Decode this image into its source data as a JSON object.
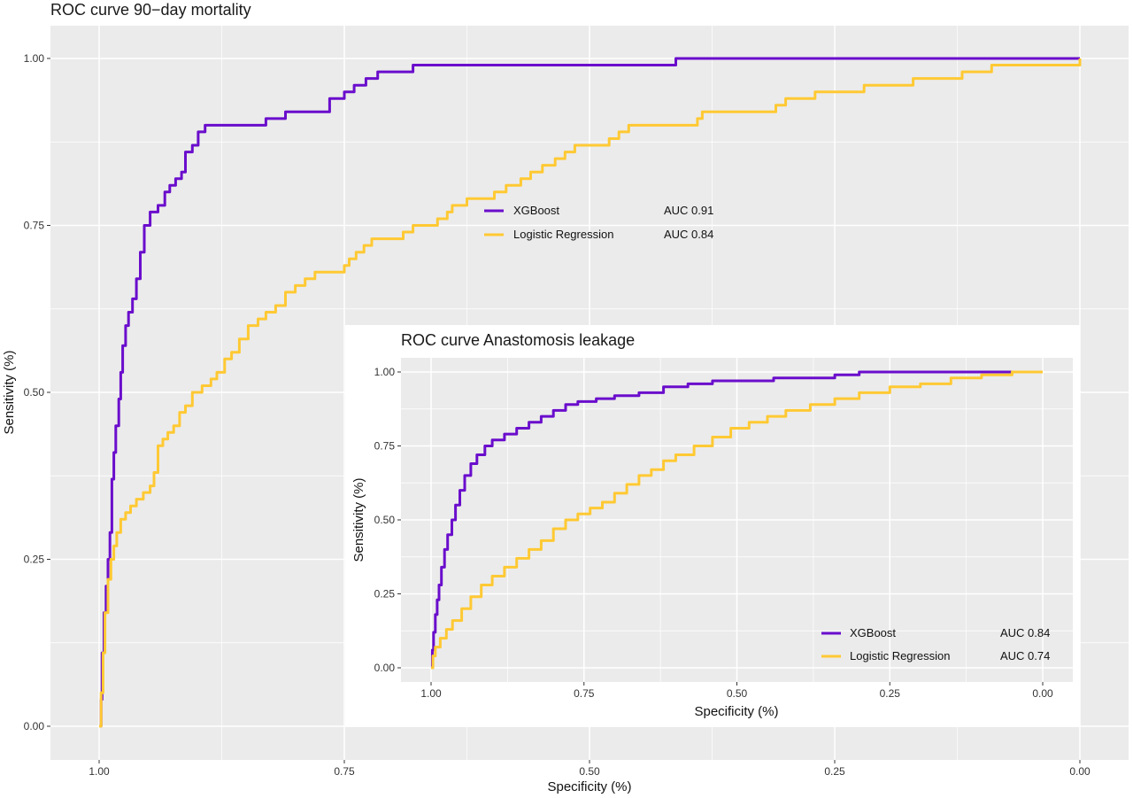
{
  "chart_data": [
    {
      "type": "line",
      "title": "ROC curve 90−day mortality",
      "xlabel": "Specificity (%)",
      "ylabel": "Sensitivity (%)",
      "xlim": [
        1.0,
        0.0
      ],
      "ylim": [
        0.0,
        1.0
      ],
      "x_reversed": true,
      "x_ticks": [
        "1.00",
        "0.75",
        "0.50",
        "0.25",
        "0.00"
      ],
      "y_ticks": [
        "0.00",
        "0.25",
        "0.50",
        "0.75",
        "1.00"
      ],
      "grid": true,
      "legend_position": "center",
      "series": [
        {
          "name": "XGBoost",
          "auc_label": "AUC 0.91",
          "color": "#6a0dcc",
          "points": [
            [
              1.0,
              0.0
            ],
            [
              0.998,
              0.04
            ],
            [
              0.997,
              0.11
            ],
            [
              0.995,
              0.17
            ],
            [
              0.993,
              0.21
            ],
            [
              0.991,
              0.25
            ],
            [
              0.989,
              0.29
            ],
            [
              0.987,
              0.37
            ],
            [
              0.985,
              0.41
            ],
            [
              0.983,
              0.45
            ],
            [
              0.98,
              0.49
            ],
            [
              0.978,
              0.53
            ],
            [
              0.976,
              0.57
            ],
            [
              0.973,
              0.6
            ],
            [
              0.97,
              0.62
            ],
            [
              0.966,
              0.64
            ],
            [
              0.962,
              0.67
            ],
            [
              0.958,
              0.71
            ],
            [
              0.954,
              0.75
            ],
            [
              0.948,
              0.77
            ],
            [
              0.94,
              0.78
            ],
            [
              0.933,
              0.8
            ],
            [
              0.928,
              0.81
            ],
            [
              0.922,
              0.82
            ],
            [
              0.916,
              0.83
            ],
            [
              0.912,
              0.86
            ],
            [
              0.905,
              0.87
            ],
            [
              0.899,
              0.89
            ],
            [
              0.892,
              0.9
            ],
            [
              0.87,
              0.9
            ],
            [
              0.845,
              0.9
            ],
            [
              0.83,
              0.91
            ],
            [
              0.81,
              0.92
            ],
            [
              0.78,
              0.92
            ],
            [
              0.765,
              0.94
            ],
            [
              0.75,
              0.95
            ],
            [
              0.74,
              0.96
            ],
            [
              0.728,
              0.97
            ],
            [
              0.716,
              0.98
            ],
            [
              0.7,
              0.98
            ],
            [
              0.68,
              0.99
            ],
            [
              0.6,
              0.99
            ],
            [
              0.5,
              0.99
            ],
            [
              0.415,
              0.99
            ],
            [
              0.412,
              1.0
            ],
            [
              0.3,
              1.0
            ],
            [
              0.2,
              1.0
            ],
            [
              0.12,
              1.0
            ],
            [
              0.0,
              1.0
            ]
          ]
        },
        {
          "name": "Logistic Regression",
          "auc_label": "AUC 0.84",
          "color": "#ffc933",
          "points": [
            [
              1.0,
              0.0
            ],
            [
              0.998,
              0.05
            ],
            [
              0.996,
              0.11
            ],
            [
              0.994,
              0.17
            ],
            [
              0.991,
              0.22
            ],
            [
              0.988,
              0.25
            ],
            [
              0.985,
              0.27
            ],
            [
              0.982,
              0.29
            ],
            [
              0.978,
              0.31
            ],
            [
              0.973,
              0.32
            ],
            [
              0.968,
              0.33
            ],
            [
              0.962,
              0.34
            ],
            [
              0.955,
              0.35
            ],
            [
              0.948,
              0.36
            ],
            [
              0.944,
              0.38
            ],
            [
              0.94,
              0.42
            ],
            [
              0.935,
              0.43
            ],
            [
              0.93,
              0.44
            ],
            [
              0.924,
              0.45
            ],
            [
              0.918,
              0.47
            ],
            [
              0.912,
              0.48
            ],
            [
              0.905,
              0.5
            ],
            [
              0.895,
              0.51
            ],
            [
              0.886,
              0.52
            ],
            [
              0.88,
              0.53
            ],
            [
              0.872,
              0.55
            ],
            [
              0.865,
              0.56
            ],
            [
              0.857,
              0.58
            ],
            [
              0.848,
              0.6
            ],
            [
              0.838,
              0.61
            ],
            [
              0.83,
              0.62
            ],
            [
              0.82,
              0.63
            ],
            [
              0.81,
              0.65
            ],
            [
              0.8,
              0.66
            ],
            [
              0.79,
              0.67
            ],
            [
              0.78,
              0.68
            ],
            [
              0.76,
              0.68
            ],
            [
              0.75,
              0.69
            ],
            [
              0.745,
              0.7
            ],
            [
              0.738,
              0.71
            ],
            [
              0.73,
              0.72
            ],
            [
              0.722,
              0.73
            ],
            [
              0.71,
              0.73
            ],
            [
              0.69,
              0.74
            ],
            [
              0.68,
              0.75
            ],
            [
              0.664,
              0.75
            ],
            [
              0.655,
              0.76
            ],
            [
              0.645,
              0.77
            ],
            [
              0.64,
              0.78
            ],
            [
              0.625,
              0.79
            ],
            [
              0.61,
              0.79
            ],
            [
              0.597,
              0.8
            ],
            [
              0.585,
              0.81
            ],
            [
              0.57,
              0.82
            ],
            [
              0.56,
              0.83
            ],
            [
              0.548,
              0.84
            ],
            [
              0.535,
              0.85
            ],
            [
              0.525,
              0.86
            ],
            [
              0.515,
              0.87
            ],
            [
              0.5,
              0.87
            ],
            [
              0.48,
              0.88
            ],
            [
              0.47,
              0.89
            ],
            [
              0.46,
              0.9
            ],
            [
              0.4,
              0.9
            ],
            [
              0.39,
              0.91
            ],
            [
              0.385,
              0.92
            ],
            [
              0.33,
              0.92
            ],
            [
              0.31,
              0.93
            ],
            [
              0.3,
              0.94
            ],
            [
              0.27,
              0.95
            ],
            [
              0.23,
              0.95
            ],
            [
              0.22,
              0.96
            ],
            [
              0.19,
              0.96
            ],
            [
              0.17,
              0.97
            ],
            [
              0.13,
              0.97
            ],
            [
              0.12,
              0.98
            ],
            [
              0.1,
              0.98
            ],
            [
              0.09,
              0.99
            ],
            [
              0.0,
              1.0
            ]
          ]
        }
      ]
    },
    {
      "type": "line",
      "title": "ROC curve Anastomosis leakage",
      "xlabel": "Specificity (%)",
      "ylabel": "Sensitivity (%)",
      "xlim": [
        1.0,
        0.0
      ],
      "ylim": [
        0.0,
        1.0
      ],
      "x_reversed": true,
      "x_ticks": [
        "1.00",
        "0.75",
        "0.50",
        "0.25",
        "0.00"
      ],
      "y_ticks": [
        "0.00",
        "0.25",
        "0.50",
        "0.75",
        "1.00"
      ],
      "grid": true,
      "legend_position": "bottom-right",
      "series": [
        {
          "name": "XGBoost",
          "auc_label": "AUC 0.84",
          "color": "#6a0dcc",
          "points": [
            [
              1.0,
              0.0
            ],
            [
              0.998,
              0.06
            ],
            [
              0.996,
              0.12
            ],
            [
              0.993,
              0.18
            ],
            [
              0.99,
              0.23
            ],
            [
              0.987,
              0.28
            ],
            [
              0.983,
              0.34
            ],
            [
              0.978,
              0.4
            ],
            [
              0.973,
              0.45
            ],
            [
              0.966,
              0.5
            ],
            [
              0.96,
              0.55
            ],
            [
              0.953,
              0.6
            ],
            [
              0.945,
              0.65
            ],
            [
              0.935,
              0.69
            ],
            [
              0.925,
              0.72
            ],
            [
              0.912,
              0.75
            ],
            [
              0.9,
              0.77
            ],
            [
              0.88,
              0.79
            ],
            [
              0.86,
              0.81
            ],
            [
              0.84,
              0.83
            ],
            [
              0.82,
              0.85
            ],
            [
              0.8,
              0.87
            ],
            [
              0.78,
              0.89
            ],
            [
              0.76,
              0.9
            ],
            [
              0.73,
              0.91
            ],
            [
              0.7,
              0.92
            ],
            [
              0.66,
              0.93
            ],
            [
              0.62,
              0.95
            ],
            [
              0.58,
              0.96
            ],
            [
              0.54,
              0.97
            ],
            [
              0.5,
              0.97
            ],
            [
              0.44,
              0.98
            ],
            [
              0.4,
              0.98
            ],
            [
              0.34,
              0.99
            ],
            [
              0.3,
              1.0
            ],
            [
              0.2,
              1.0
            ],
            [
              0.1,
              1.0
            ],
            [
              0.05,
              1.0
            ]
          ]
        },
        {
          "name": "Logistic Regression",
          "auc_label": "AUC 0.74",
          "color": "#ffc933",
          "points": [
            [
              1.0,
              0.0
            ],
            [
              0.997,
              0.04
            ],
            [
              0.993,
              0.07
            ],
            [
              0.985,
              0.1
            ],
            [
              0.975,
              0.13
            ],
            [
              0.965,
              0.16
            ],
            [
              0.95,
              0.2
            ],
            [
              0.935,
              0.24
            ],
            [
              0.918,
              0.28
            ],
            [
              0.9,
              0.31
            ],
            [
              0.88,
              0.34
            ],
            [
              0.86,
              0.37
            ],
            [
              0.84,
              0.4
            ],
            [
              0.82,
              0.43
            ],
            [
              0.8,
              0.47
            ],
            [
              0.78,
              0.5
            ],
            [
              0.76,
              0.52
            ],
            [
              0.74,
              0.54
            ],
            [
              0.72,
              0.56
            ],
            [
              0.7,
              0.59
            ],
            [
              0.68,
              0.62
            ],
            [
              0.66,
              0.65
            ],
            [
              0.64,
              0.67
            ],
            [
              0.62,
              0.7
            ],
            [
              0.6,
              0.72
            ],
            [
              0.57,
              0.75
            ],
            [
              0.54,
              0.78
            ],
            [
              0.51,
              0.81
            ],
            [
              0.48,
              0.83
            ],
            [
              0.45,
              0.85
            ],
            [
              0.42,
              0.87
            ],
            [
              0.38,
              0.89
            ],
            [
              0.34,
              0.91
            ],
            [
              0.3,
              0.93
            ],
            [
              0.25,
              0.95
            ],
            [
              0.2,
              0.96
            ],
            [
              0.15,
              0.98
            ],
            [
              0.1,
              0.99
            ],
            [
              0.05,
              1.0
            ],
            [
              0.0,
              1.0
            ]
          ]
        }
      ]
    }
  ]
}
